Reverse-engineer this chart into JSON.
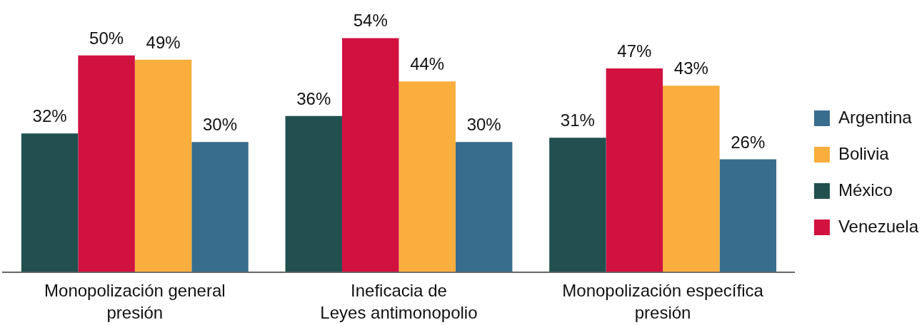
{
  "chart_data": {
    "type": "bar",
    "categories": [
      "Monopolización general\npresión",
      "Ineficacia de\nLeyes antimonopolio",
      "Monopolización específica\npresión"
    ],
    "series": [
      {
        "name": "México",
        "color": "#21504f",
        "values": [
          32,
          36,
          31
        ],
        "value_labels": [
          "32%",
          "36%",
          "31%"
        ]
      },
      {
        "name": "Venezuela",
        "color": "#d11140",
        "values": [
          50,
          54,
          47
        ],
        "value_labels": [
          "50%",
          "54%",
          "47%"
        ]
      },
      {
        "name": "Bolivia",
        "color": "#f9ae3d",
        "values": [
          49,
          44,
          43
        ],
        "value_labels": [
          "49%",
          "44%",
          "43%"
        ]
      },
      {
        "name": "Argentina",
        "color": "#396d8d",
        "values": [
          30,
          30,
          26
        ],
        "value_labels": [
          "30%",
          "30%",
          "26%"
        ]
      }
    ],
    "legend": "right"
  }
}
